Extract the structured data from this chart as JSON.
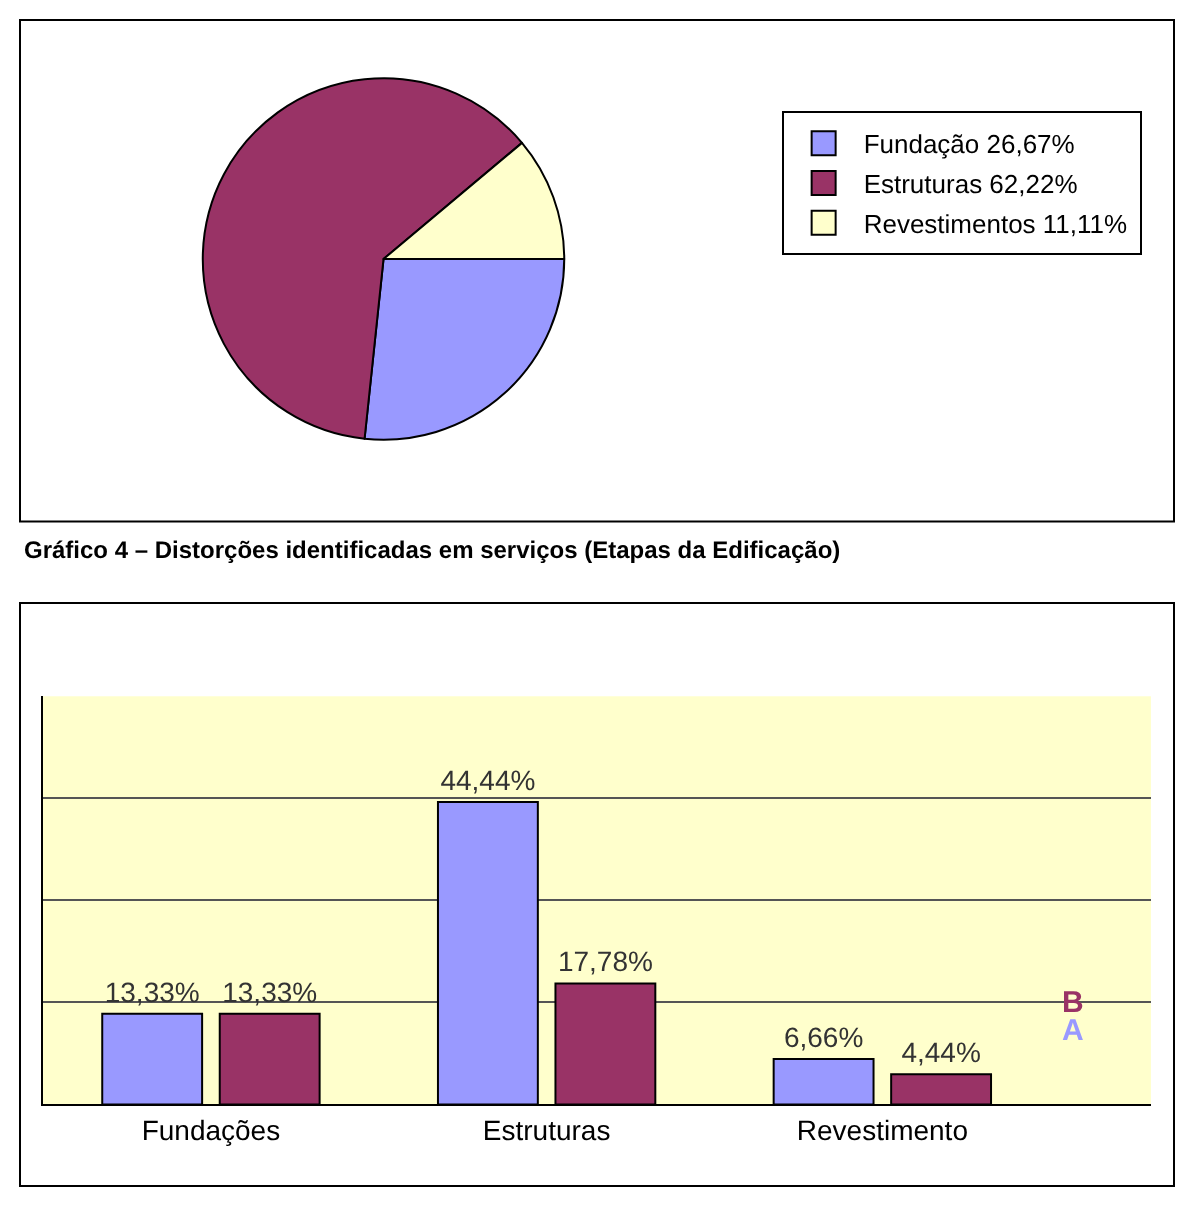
{
  "chart_data": [
    {
      "type": "pie",
      "categories": [
        "Fundação 26,67%",
        "Estruturas 62,22%",
        "Revestimentos 11,11%"
      ],
      "values": [
        26.67,
        62.22,
        11.11
      ],
      "colors": [
        "#9999ff",
        "#993366",
        "#ffffcc"
      ],
      "legend": "right",
      "annotations": [
        "Gráfico 4 – Distorções identificadas em serviços (Etapas da Edificação)"
      ]
    },
    {
      "type": "bar",
      "categories": [
        "Fundações",
        "Estruturas",
        "Revestimento"
      ],
      "ylim": [
        0,
        60
      ],
      "yticks": [
        {
          "value": 15,
          "label": null
        },
        {
          "value": 30,
          "label": null
        },
        {
          "value": 45,
          "label": null
        }
      ],
      "grid": "y",
      "series": [
        {
          "name": "A",
          "color": "#9999ff",
          "values": [
            13.33,
            44.44,
            6.66
          ],
          "value_labels": [
            "13,33%",
            "44,44%",
            "6,66%"
          ]
        },
        {
          "name": "B",
          "color": "#993366",
          "values": [
            13.33,
            17.78,
            4.44
          ],
          "value_labels": [
            "13,33%",
            "17,78%",
            "4,44%"
          ]
        }
      ]
    }
  ]
}
